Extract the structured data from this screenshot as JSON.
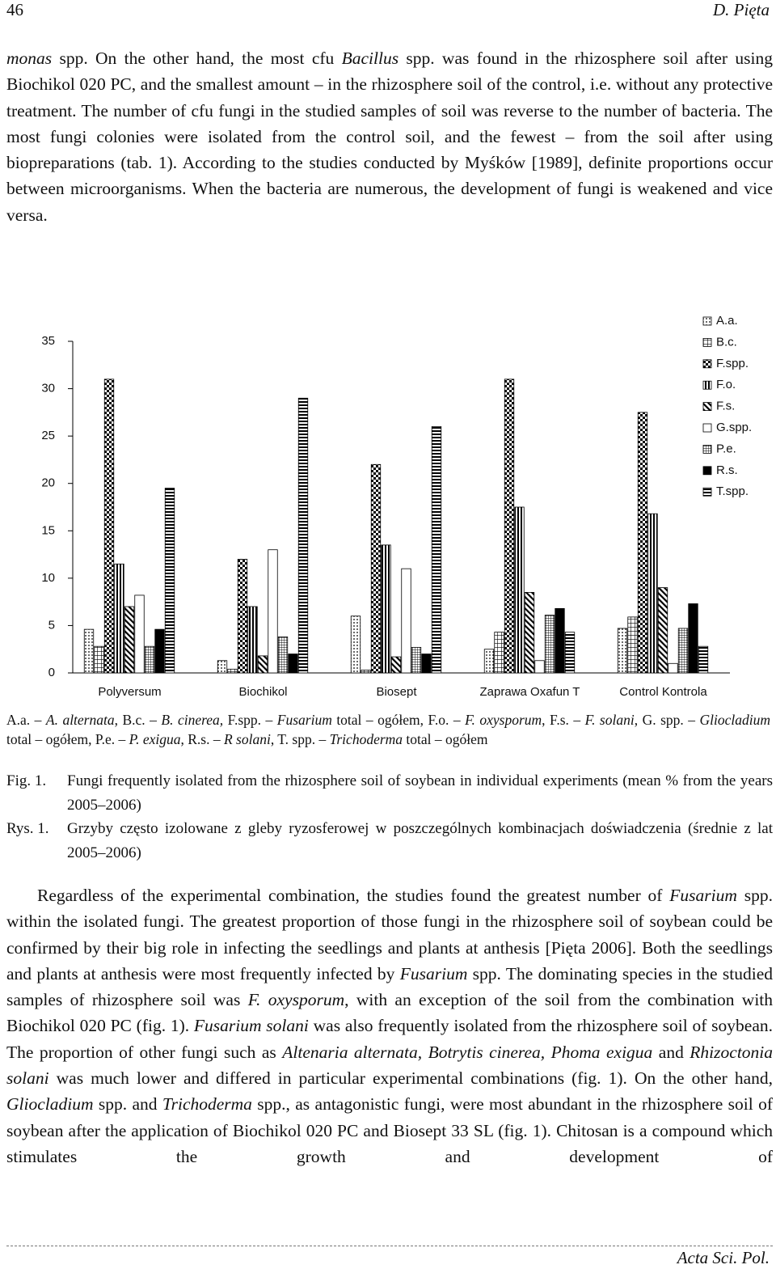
{
  "header": {
    "page_number": "46",
    "author": "D. Pięta"
  },
  "text_before": [
    {
      "text": "monas",
      "italic": true
    },
    " spp. On the other hand, the most cfu ",
    {
      "text": "Bacillus",
      "italic": true
    },
    " spp. was found in the rhizosphere soil after using Biochikol 020 PC, and the smallest amount – in the rhizosphere soil of the control, i.e. without any protective treatment. The number of cfu fungi in the studied samples of soil was reverse to the number of bacteria. The most fungi colonies were isolated from the control soil, and the fewest – from the soil after using biopreparations (tab. 1). According to the studies conducted by Myśków [1989], definite proportions occur between microorganisms. When the bacteria are numerous, the development of fungi is weakened and vice versa."
  ],
  "chart_data": {
    "type": "bar",
    "categories": [
      "Polyversum",
      "Biochikol",
      "Biosept",
      "Zaprawa Oxafun T",
      "Control Kontrola"
    ],
    "series": [
      {
        "name": "A.a.",
        "color": "#000000",
        "pattern": "dots",
        "values": [
          4.6,
          1.3,
          6.0,
          2.5,
          4.7
        ]
      },
      {
        "name": "B.c.",
        "color": "#000000",
        "pattern": "grid",
        "values": [
          2.8,
          0.4,
          0.3,
          4.3,
          5.9
        ]
      },
      {
        "name": "F.spp.",
        "color": "#000000",
        "pattern": "checker",
        "values": [
          31,
          12,
          22,
          31,
          27.5
        ]
      },
      {
        "name": "F.o.",
        "color": "#000000",
        "pattern": "vstripes",
        "values": [
          11.5,
          7,
          13.5,
          17.5,
          16.8
        ]
      },
      {
        "name": "F.s.",
        "color": "#000000",
        "pattern": "diagonal",
        "values": [
          7,
          1.8,
          1.7,
          8.5,
          9
        ]
      },
      {
        "name": "G.spp.",
        "color": "#000000",
        "pattern": "blank",
        "values": [
          8.2,
          13,
          11,
          1.3,
          1
        ]
      },
      {
        "name": "P.e.",
        "color": "#000000",
        "pattern": "smallgrid",
        "values": [
          2.8,
          3.8,
          2.7,
          6.1,
          4.7
        ]
      },
      {
        "name": "R.s.",
        "color": "#000000",
        "pattern": "solid",
        "values": [
          4.6,
          2,
          2,
          6.8,
          7.3
        ]
      },
      {
        "name": "T.spp.",
        "color": "#000000",
        "pattern": "hstripes",
        "values": [
          19.5,
          29,
          26,
          4.3,
          2.8
        ]
      }
    ],
    "ylim": [
      0,
      35
    ],
    "yticks": [
      0,
      5,
      10,
      15,
      20,
      25,
      30,
      35
    ],
    "grid": false,
    "legend": "top-right"
  },
  "legend_note": [
    "A.a. – ",
    {
      "text": "A. alternata",
      "italic": true
    },
    ", B.c. – ",
    {
      "text": "B. cinerea,",
      "italic": true
    },
    " F.spp. – ",
    {
      "text": "Fusarium",
      "italic": true
    },
    " total – ogółem, F.o. – ",
    {
      "text": "F. oxysporum",
      "italic": true
    },
    ", F.s. – ",
    {
      "text": "F. solani",
      "italic": true
    },
    ", G. spp. – ",
    {
      "text": "Gliocladium",
      "italic": true
    },
    " total – ogółem, P.e. – ",
    {
      "text": "P. exigua",
      "italic": true
    },
    ", R.s. – ",
    {
      "text": "R solani",
      "italic": true
    },
    ", T. spp. – ",
    {
      "text": "Trichoderma",
      "italic": true
    },
    " total – ogółem"
  ],
  "captions": [
    {
      "label": "Fig. 1.",
      "text": "Fungi frequently isolated from the rhizosphere soil of soybean in individual experiments (mean % from the years 2005–2006)"
    },
    {
      "label": "Rys. 1.",
      "text": "Grzyby często izolowane z gleby ryzosferowej w poszczególnych kombinacjach doświadczenia (średnie z lat 2005–2006)"
    }
  ],
  "text_after": [
    "Regardless of the experimental combination, the studies found the greatest number of ",
    {
      "text": "Fusarium",
      "italic": true
    },
    " spp. within the isolated fungi. The greatest proportion of those fungi in the rhizosphere soil of soybean could be confirmed by their big role in infecting the seedlings and plants at anthesis [Pięta 2006]. Both the seedlings and plants at anthesis were most frequently infected by ",
    {
      "text": "Fusarium",
      "italic": true
    },
    " spp. The dominating species in the studied samples of rhizosphere soil was ",
    {
      "text": "F. oxysporum",
      "italic": true
    },
    ", with an exception of the soil from the combination with Biochikol 020 PC (fig. 1). ",
    {
      "text": "Fusarium solani",
      "italic": true
    },
    " was also frequently isolated from the rhizosphere soil of soybean. The proportion of other fungi such as ",
    {
      "text": "Altenaria alternata, Botrytis cinerea, Phoma exigua",
      "italic": true
    },
    " and ",
    {
      "text": "Rhizoctonia solani",
      "italic": true
    },
    " was much lower and differed in particular experimental combinations (fig. 1). On the other hand, ",
    {
      "text": "Gliocladium",
      "italic": true
    },
    " spp. and ",
    {
      "text": "Trichoderma",
      "italic": true
    },
    " spp., as antagonistic fungi, were most abundant in the rhizosphere soil of soybean after the application of Biochikol 020 PC and Biosept 33 SL (fig. 1). Chitosan is a compound which stimulates the growth and development of"
  ],
  "footer": "Acta Sci. Pol."
}
